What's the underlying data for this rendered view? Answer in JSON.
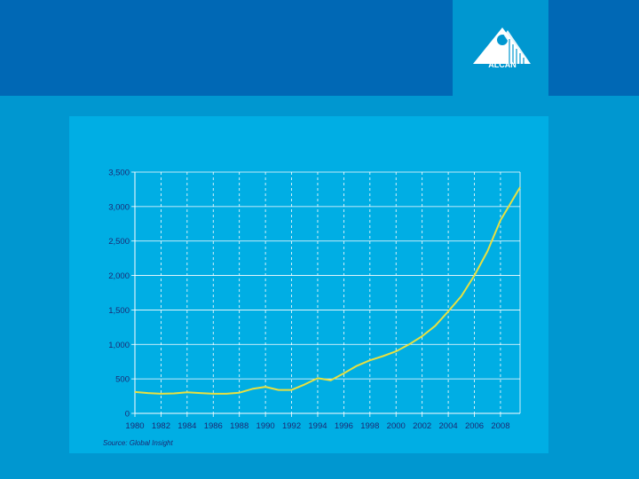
{
  "brand": {
    "logo_text": "ALCAN",
    "logo_icon": "alcan-triangle-logo-icon"
  },
  "colors": {
    "top_band": "#0068b5",
    "background": "#0097d0",
    "panel": "#00aee4",
    "series_line": "#e8e040",
    "axis_text": "#1c2a73"
  },
  "source_note": "Source: Global Insight",
  "chart_data": {
    "type": "line",
    "title": "",
    "xlabel": "",
    "ylabel": "",
    "xlim": [
      1980,
      2009.5
    ],
    "ylim": [
      0,
      3500
    ],
    "x_ticks": [
      "1980",
      "1982",
      "1984",
      "1986",
      "1988",
      "1990",
      "1992",
      "1994",
      "1996",
      "1998",
      "2000",
      "2002",
      "2004",
      "2006",
      "2008"
    ],
    "y_ticks": [
      "0",
      "500",
      "1,000",
      "1,500",
      "2,000",
      "2,500",
      "3,000",
      "3,500"
    ],
    "grid": {
      "horizontal": "solid",
      "vertical": "dashed"
    },
    "legend": "none",
    "series": [
      {
        "x": [
          1980,
          1981,
          1982,
          1983,
          1984,
          1985,
          1986,
          1987,
          1988,
          1989,
          1990,
          1991,
          1992,
          1993,
          1994,
          1995,
          1996,
          1997,
          1998,
          1999,
          2000,
          2001,
          2002,
          2003,
          2004,
          2005,
          2006,
          2007,
          2008,
          2009.5
        ],
        "values": [
          310,
          295,
          285,
          290,
          305,
          295,
          285,
          285,
          300,
          355,
          385,
          340,
          340,
          420,
          510,
          480,
          580,
          690,
          770,
          830,
          900,
          1000,
          1120,
          1270,
          1480,
          1700,
          2000,
          2350,
          2800,
          3280
        ]
      }
    ]
  }
}
